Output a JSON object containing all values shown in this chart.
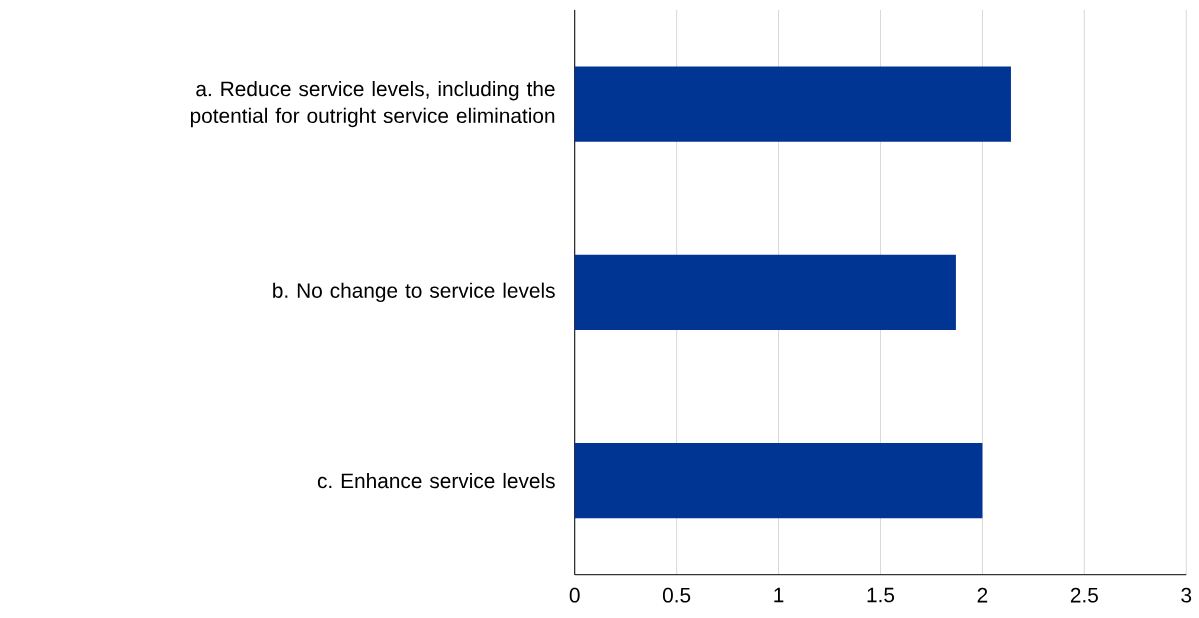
{
  "chart_data": {
    "type": "bar",
    "orientation": "horizontal",
    "categories": [
      "a. Reduce service levels, including the potential for outright service elimination",
      "b. No change to service levels",
      "c. Enhance service levels"
    ],
    "values": [
      2.14,
      1.87,
      2.0
    ],
    "color": "#003594",
    "xlim": [
      0,
      3
    ],
    "xticks": [
      0,
      0.5,
      1,
      1.5,
      2,
      2.5,
      3
    ],
    "grid": "x"
  }
}
